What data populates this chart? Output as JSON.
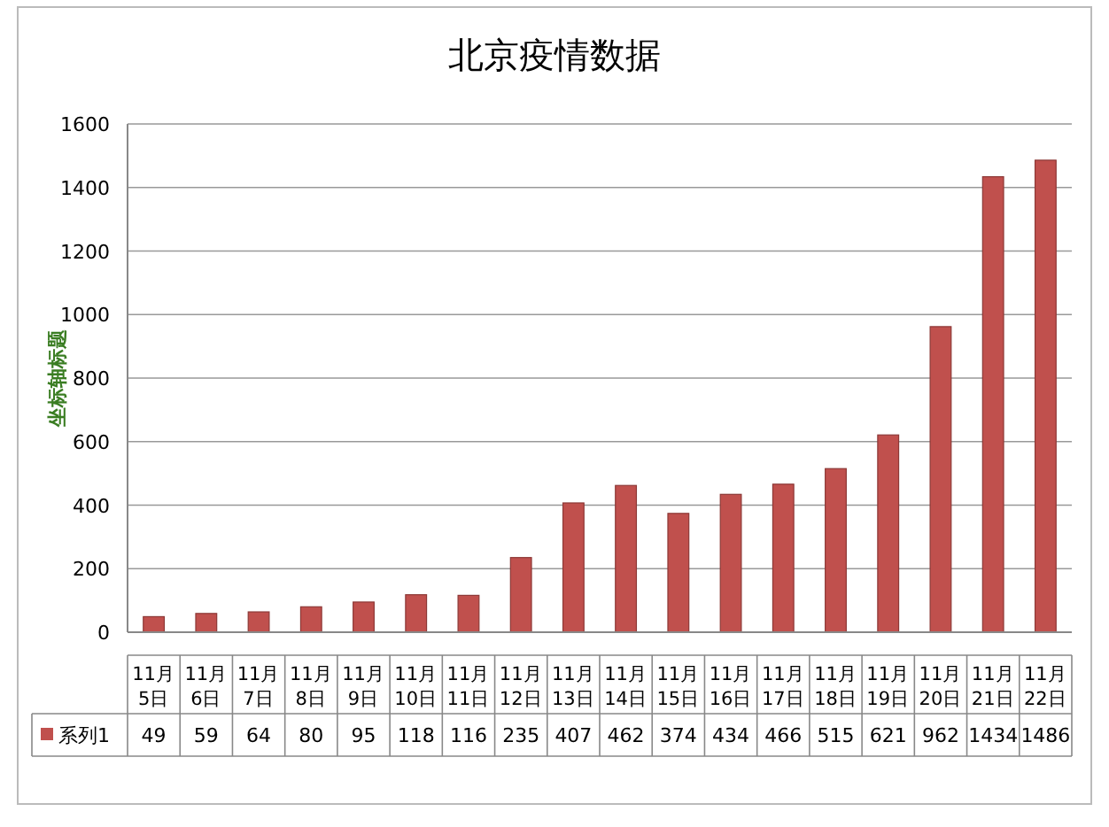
{
  "chart_data": {
    "type": "bar",
    "title": "北京疫情数据",
    "ylabel": "坐标轴标题",
    "categories": [
      "11月5日",
      "11月6日",
      "11月7日",
      "11月8日",
      "11月9日",
      "11月10日",
      "11月11日",
      "11月12日",
      "11月13日",
      "11月14日",
      "11月15日",
      "11月16日",
      "11月17日",
      "11月18日",
      "11月19日",
      "11月20日",
      "11月21日",
      "11月22日"
    ],
    "series": [
      {
        "name": "系列1",
        "color": "#c0504d",
        "values": [
          49,
          59,
          64,
          80,
          95,
          118,
          116,
          235,
          407,
          462,
          374,
          434,
          466,
          515,
          621,
          962,
          1434,
          1486
        ]
      }
    ],
    "ylim": [
      0,
      1600
    ],
    "yticks": [
      0,
      200,
      400,
      600,
      800,
      1000,
      1200,
      1400,
      1600
    ],
    "grid": "y",
    "data_labels": true,
    "legend": "bottom"
  }
}
